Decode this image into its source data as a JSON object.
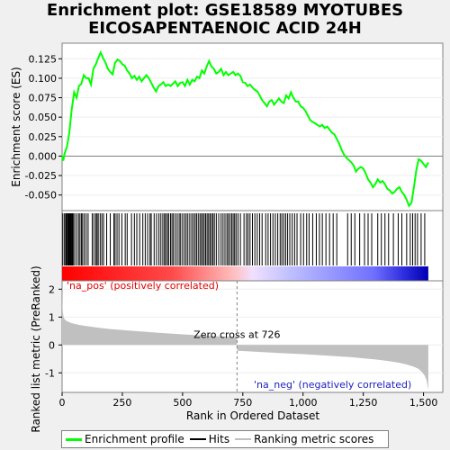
{
  "title_line1": "Enrichment plot: GSE18589 MYOTUBES",
  "title_line2": "EICOSAPENTAENOIC ACID 24H",
  "chart_data": {
    "type": "line",
    "es_panel": {
      "ylabel": "Enrichment score (ES)",
      "ylim": [
        -0.07,
        0.145
      ],
      "yticks": [
        -0.05,
        -0.025,
        0.0,
        0.025,
        0.05,
        0.075,
        0.1,
        0.125
      ],
      "ytick_labels": [
        "-0.050",
        "-0.025",
        "0.000",
        "0.025",
        "0.050",
        "0.075",
        "0.100",
        "0.125"
      ],
      "series_name": "Enrichment profile",
      "color": "#00ff00",
      "x": [
        0,
        5,
        10,
        20,
        30,
        40,
        50,
        60,
        70,
        80,
        90,
        100,
        110,
        120,
        130,
        140,
        150,
        160,
        170,
        180,
        190,
        200,
        210,
        220,
        230,
        240,
        250,
        260,
        270,
        280,
        290,
        300,
        310,
        320,
        330,
        340,
        350,
        360,
        370,
        380,
        390,
        400,
        410,
        420,
        430,
        440,
        450,
        460,
        470,
        480,
        490,
        500,
        510,
        520,
        530,
        540,
        550,
        560,
        570,
        580,
        590,
        600,
        610,
        620,
        630,
        640,
        650,
        660,
        670,
        680,
        690,
        700,
        710,
        720,
        730,
        740,
        750,
        760,
        770,
        780,
        790,
        800,
        810,
        820,
        830,
        840,
        850,
        860,
        870,
        880,
        890,
        900,
        910,
        920,
        930,
        940,
        950,
        960,
        970,
        980,
        990,
        1000,
        1010,
        1020,
        1030,
        1040,
        1050,
        1060,
        1070,
        1080,
        1090,
        1100,
        1110,
        1120,
        1130,
        1140,
        1150,
        1160,
        1170,
        1180,
        1190,
        1200,
        1210,
        1220,
        1230,
        1240,
        1250,
        1260,
        1270,
        1280,
        1290,
        1300,
        1310,
        1320,
        1330,
        1340,
        1350,
        1360,
        1370,
        1380,
        1390,
        1400,
        1410,
        1420,
        1430,
        1440,
        1450,
        1460,
        1470,
        1480,
        1490,
        1500,
        1510,
        1520
      ],
      "y": [
        0.0,
        -0.006,
        0.003,
        0.012,
        0.03,
        0.06,
        0.082,
        0.075,
        0.09,
        0.093,
        0.104,
        0.1,
        0.1,
        0.092,
        0.112,
        0.118,
        0.126,
        0.133,
        0.126,
        0.12,
        0.112,
        0.108,
        0.105,
        0.12,
        0.124,
        0.122,
        0.118,
        0.116,
        0.11,
        0.106,
        0.1,
        0.103,
        0.098,
        0.102,
        0.096,
        0.1,
        0.104,
        0.1,
        0.094,
        0.088,
        0.083,
        0.09,
        0.092,
        0.095,
        0.09,
        0.092,
        0.09,
        0.093,
        0.096,
        0.09,
        0.094,
        0.095,
        0.09,
        0.098,
        0.092,
        0.098,
        0.096,
        0.102,
        0.1,
        0.11,
        0.106,
        0.115,
        0.122,
        0.115,
        0.112,
        0.106,
        0.108,
        0.112,
        0.104,
        0.108,
        0.104,
        0.106,
        0.108,
        0.104,
        0.106,
        0.103,
        0.095,
        0.094,
        0.09,
        0.092,
        0.088,
        0.085,
        0.083,
        0.078,
        0.072,
        0.068,
        0.064,
        0.07,
        0.072,
        0.066,
        0.07,
        0.074,
        0.07,
        0.068,
        0.078,
        0.074,
        0.082,
        0.075,
        0.07,
        0.07,
        0.064,
        0.062,
        0.058,
        0.052,
        0.046,
        0.044,
        0.042,
        0.04,
        0.038,
        0.04,
        0.036,
        0.038,
        0.034,
        0.03,
        0.028,
        0.022,
        0.016,
        0.008,
        0.002,
        -0.002,
        -0.005,
        -0.008,
        -0.012,
        -0.02,
        -0.016,
        -0.014,
        -0.016,
        -0.022,
        -0.03,
        -0.034,
        -0.04,
        -0.036,
        -0.03,
        -0.034,
        -0.032,
        -0.036,
        -0.042,
        -0.044,
        -0.048,
        -0.046,
        -0.042,
        -0.04,
        -0.046,
        -0.05,
        -0.056,
        -0.064,
        -0.06,
        -0.04,
        -0.018,
        -0.004,
        -0.006,
        -0.01,
        -0.014,
        -0.008
      ]
    },
    "hits_panel": {
      "series_name": "Hits",
      "positions": [
        3,
        10,
        15,
        18,
        22,
        25,
        28,
        31,
        34,
        37,
        40,
        43,
        46,
        52,
        60,
        68,
        74,
        80,
        85,
        92,
        100,
        108,
        125,
        132,
        140,
        145,
        150,
        158,
        165,
        172,
        185,
        200,
        215,
        220,
        228,
        236,
        248,
        262,
        270,
        288,
        300,
        310,
        322,
        335,
        345,
        355,
        365,
        370,
        382,
        392,
        402,
        410,
        418,
        425,
        430,
        437,
        442,
        450,
        456,
        462,
        470,
        478,
        486,
        492,
        500,
        508,
        515,
        522,
        530,
        538,
        545,
        552,
        558,
        565,
        572,
        578,
        584,
        590,
        596,
        602,
        608,
        614,
        620,
        626,
        632,
        640,
        650,
        660,
        668,
        676,
        684,
        690,
        697,
        704,
        710,
        716,
        722,
        730,
        740,
        755,
        765,
        772,
        780,
        790,
        800,
        810,
        820,
        830,
        845,
        855,
        865,
        875,
        885,
        895,
        905,
        912,
        920,
        928,
        936,
        945,
        955,
        965,
        975,
        990,
        1002,
        1015,
        1025,
        1040,
        1055,
        1068,
        1080,
        1095,
        1110,
        1125,
        1140,
        1185,
        1200,
        1215,
        1235,
        1255,
        1270,
        1285,
        1310,
        1325,
        1340,
        1355,
        1375,
        1395,
        1410,
        1430,
        1445,
        1455,
        1465,
        1475,
        1490,
        1505
      ]
    },
    "metric_panel": {
      "ylabel": "Ranked list metric (PreRanked)",
      "xlabel": "Rank in Ordered Dataset",
      "series_name": "Ranking metric scores",
      "ylim": [
        -1.7,
        2.3
      ],
      "yticks": [
        -1,
        0,
        1,
        2
      ],
      "xlim": [
        0,
        1580
      ],
      "xticks": [
        0,
        250,
        500,
        750,
        1000,
        1250,
        1500
      ],
      "xtick_labels": [
        "0",
        "250",
        "500",
        "750",
        "1,000",
        "1,250",
        "1,500"
      ],
      "zero_cross": 726,
      "n_genes": 1520,
      "x": [
        0,
        1,
        3,
        6,
        10,
        20,
        40,
        70,
        100,
        150,
        200,
        300,
        400,
        500,
        600,
        700,
        725,
        726,
        730,
        800,
        900,
        1000,
        1100,
        1200,
        1300,
        1350,
        1400,
        1430,
        1460,
        1480,
        1495,
        1505,
        1512,
        1517,
        1520
      ],
      "y": [
        2.1,
        1.5,
        1.2,
        1.0,
        0.92,
        0.85,
        0.78,
        0.72,
        0.68,
        0.62,
        0.57,
        0.5,
        0.44,
        0.38,
        0.33,
        0.29,
        0.28,
        -0.2,
        -0.21,
        -0.24,
        -0.29,
        -0.33,
        -0.38,
        -0.44,
        -0.52,
        -0.57,
        -0.64,
        -0.7,
        -0.78,
        -0.86,
        -0.98,
        -1.1,
        -1.25,
        -1.45,
        -1.62
      ],
      "annotation_zero_cross": "Zero cross at 726",
      "label_pos": "'na_pos' (positively correlated)",
      "label_neg": "'na_neg' (negatively correlated)"
    },
    "legend_placement": "bottom"
  },
  "legend": {
    "items": [
      {
        "label": "Enrichment profile",
        "color": "#00ff00"
      },
      {
        "label": "Hits",
        "color": "#000000"
      },
      {
        "label": "Ranking metric scores",
        "color": "#c0c0c0"
      }
    ]
  }
}
